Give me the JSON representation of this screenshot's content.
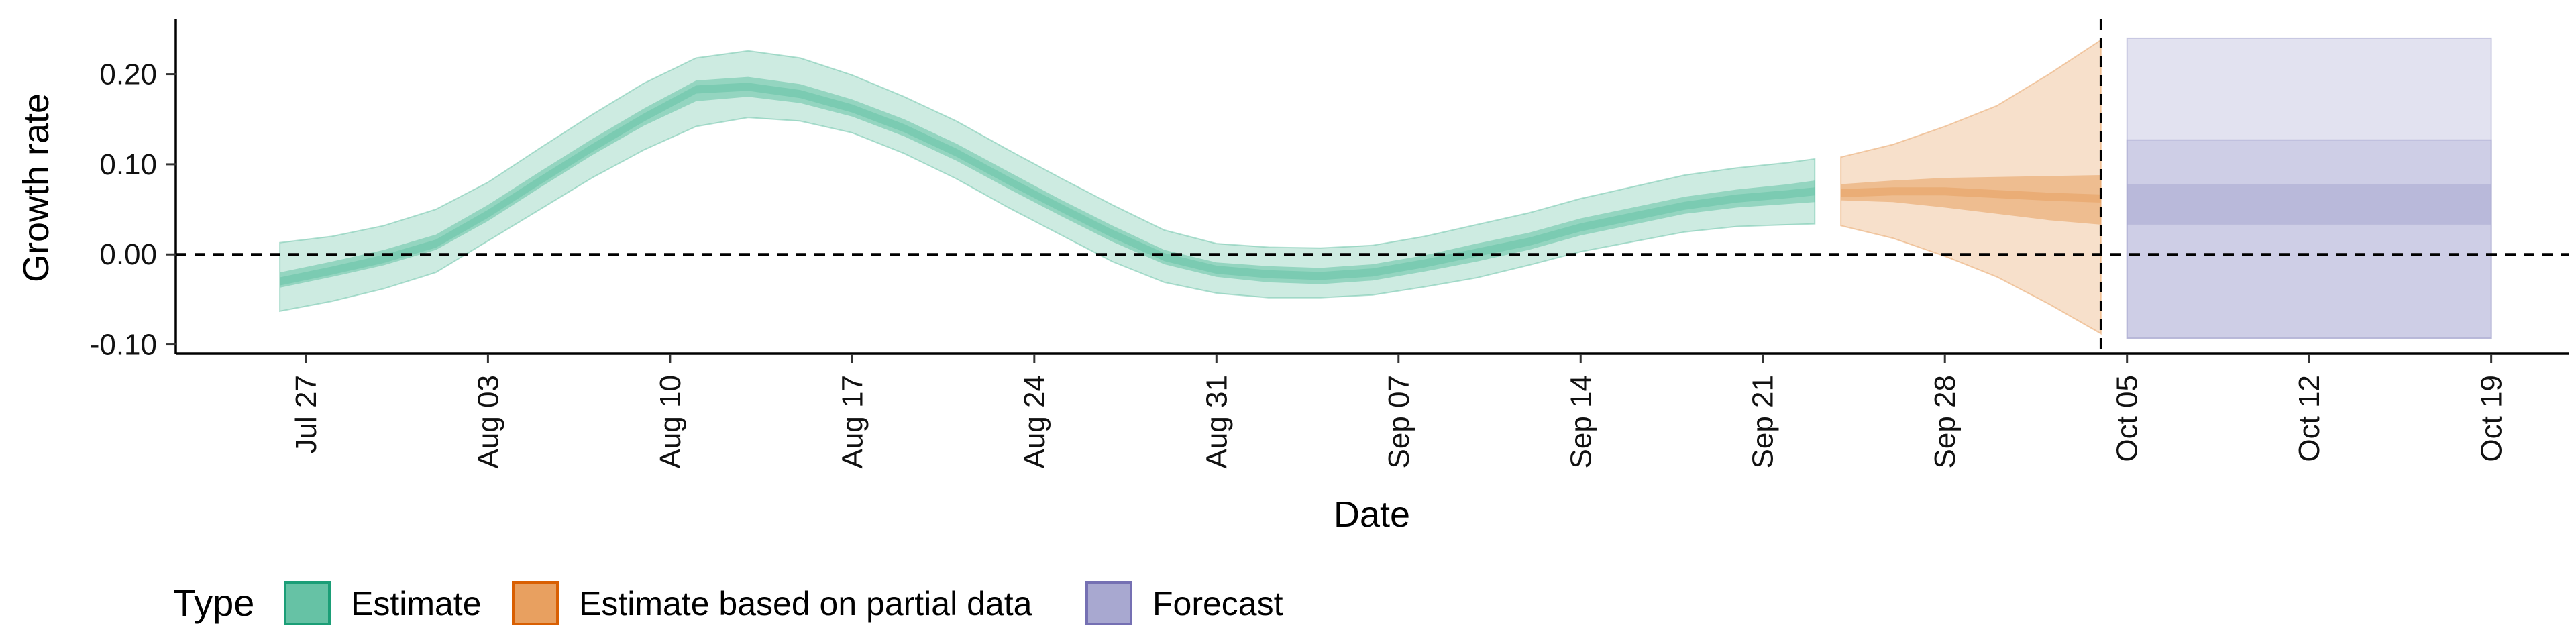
{
  "chart_data": {
    "type": "area",
    "title": "",
    "xlabel": "Date",
    "ylabel": "Growth rate",
    "xlim": [
      "2020-07-22",
      "2020-10-22"
    ],
    "ylim": [
      -0.11,
      0.26
    ],
    "x_ticks": [
      "2020-07-27",
      "2020-08-03",
      "2020-08-10",
      "2020-08-17",
      "2020-08-24",
      "2020-08-31",
      "2020-09-07",
      "2020-09-14",
      "2020-09-21",
      "2020-09-28",
      "2020-10-05",
      "2020-10-12",
      "2020-10-19"
    ],
    "x_tick_labels": [
      "Jul 27",
      "Aug 03",
      "Aug 10",
      "Aug 17",
      "Aug 24",
      "Aug 31",
      "Sep 07",
      "Sep 14",
      "Sep 21",
      "Sep 28",
      "Oct 05",
      "Oct 12",
      "Oct 19"
    ],
    "y_ticks": [
      -0.1,
      0.0,
      0.1,
      0.2
    ],
    "y_tick_labels": [
      "-0.10",
      "0.00",
      "0.10",
      "0.20"
    ],
    "reference_lines": {
      "horizontal_y": 0.0,
      "vertical_x": "2020-10-04"
    },
    "grid": false,
    "legend": {
      "title": "Type",
      "position": "bottom-left",
      "items": [
        {
          "label": "Estimate",
          "fill": "#66c2a5",
          "stroke": "#1b9e77"
        },
        {
          "label": "Estimate based on partial data",
          "fill": "#e8a060",
          "stroke": "#d95f02"
        },
        {
          "label": "Forecast",
          "fill": "#a8a8d0",
          "stroke": "#7570b3"
        }
      ]
    },
    "series": [
      {
        "name": "Estimate",
        "color": "#66c2a5",
        "x": [
          "2020-07-26",
          "2020-07-28",
          "2020-07-30",
          "2020-08-01",
          "2020-08-03",
          "2020-08-05",
          "2020-08-07",
          "2020-08-09",
          "2020-08-11",
          "2020-08-13",
          "2020-08-15",
          "2020-08-17",
          "2020-08-19",
          "2020-08-21",
          "2020-08-23",
          "2020-08-25",
          "2020-08-27",
          "2020-08-29",
          "2020-08-31",
          "2020-09-02",
          "2020-09-04",
          "2020-09-06",
          "2020-09-08",
          "2020-09-10",
          "2020-09-12",
          "2020-09-14",
          "2020-09-16",
          "2020-09-18",
          "2020-09-20",
          "2020-09-22",
          "2020-09-23"
        ],
        "median": [
          -0.03,
          -0.018,
          -0.005,
          0.012,
          0.045,
          0.082,
          0.118,
          0.152,
          0.183,
          0.186,
          0.178,
          0.162,
          0.14,
          0.113,
          0.082,
          0.052,
          0.023,
          -0.003,
          -0.017,
          -0.022,
          -0.024,
          -0.02,
          -0.01,
          0.002,
          0.014,
          0.03,
          0.042,
          0.054,
          0.062,
          0.067,
          0.07
        ],
        "lower_50": [
          -0.037,
          -0.025,
          -0.012,
          0.005,
          0.037,
          0.074,
          0.11,
          0.143,
          0.17,
          0.175,
          0.168,
          0.153,
          0.131,
          0.104,
          0.073,
          0.043,
          0.014,
          -0.011,
          -0.025,
          -0.031,
          -0.033,
          -0.029,
          -0.019,
          -0.008,
          0.005,
          0.021,
          0.033,
          0.045,
          0.052,
          0.056,
          0.058
        ],
        "upper_50": [
          -0.02,
          -0.008,
          0.005,
          0.022,
          0.055,
          0.092,
          0.128,
          0.162,
          0.193,
          0.197,
          0.189,
          0.172,
          0.15,
          0.123,
          0.092,
          0.061,
          0.032,
          0.005,
          -0.009,
          -0.013,
          -0.015,
          -0.011,
          -0.001,
          0.012,
          0.024,
          0.04,
          0.052,
          0.064,
          0.072,
          0.078,
          0.082
        ],
        "lower_90": [
          -0.063,
          -0.052,
          -0.038,
          -0.02,
          0.015,
          0.05,
          0.085,
          0.116,
          0.142,
          0.152,
          0.148,
          0.135,
          0.112,
          0.084,
          0.052,
          0.022,
          -0.008,
          -0.031,
          -0.043,
          -0.048,
          -0.048,
          -0.045,
          -0.036,
          -0.026,
          -0.012,
          0.003,
          0.014,
          0.025,
          0.031,
          0.033,
          0.034
        ],
        "upper_90": [
          0.013,
          0.02,
          0.032,
          0.05,
          0.08,
          0.118,
          0.155,
          0.19,
          0.218,
          0.226,
          0.218,
          0.199,
          0.175,
          0.148,
          0.116,
          0.085,
          0.055,
          0.027,
          0.012,
          0.008,
          0.007,
          0.01,
          0.02,
          0.033,
          0.046,
          0.062,
          0.075,
          0.088,
          0.096,
          0.102,
          0.106
        ]
      },
      {
        "name": "Estimate based on partial data",
        "color": "#e8a060",
        "x": [
          "2020-09-24",
          "2020-09-26",
          "2020-09-28",
          "2020-09-30",
          "2020-10-02",
          "2020-10-04"
        ],
        "median": [
          0.068,
          0.07,
          0.07,
          0.067,
          0.064,
          0.062
        ],
        "lower_50": [
          0.06,
          0.058,
          0.052,
          0.045,
          0.038,
          0.033
        ],
        "upper_50": [
          0.078,
          0.082,
          0.085,
          0.086,
          0.087,
          0.088
        ],
        "lower_90": [
          0.032,
          0.018,
          -0.002,
          -0.025,
          -0.055,
          -0.088
        ],
        "upper_90": [
          0.108,
          0.122,
          0.142,
          0.165,
          0.2,
          0.238
        ]
      },
      {
        "name": "Forecast",
        "color": "#a8a8d0",
        "x": [
          "2020-10-05",
          "2020-10-19"
        ],
        "median": [
          0.057,
          0.057
        ],
        "lower_50": [
          0.033,
          0.033
        ],
        "upper_50": [
          0.078,
          0.078
        ],
        "lower_90": [
          -0.093,
          -0.093
        ],
        "upper_90": [
          0.127,
          0.127
        ],
        "lower_outer": [
          -0.093,
          -0.093
        ],
        "upper_outer": [
          0.24,
          0.24
        ]
      }
    ]
  }
}
